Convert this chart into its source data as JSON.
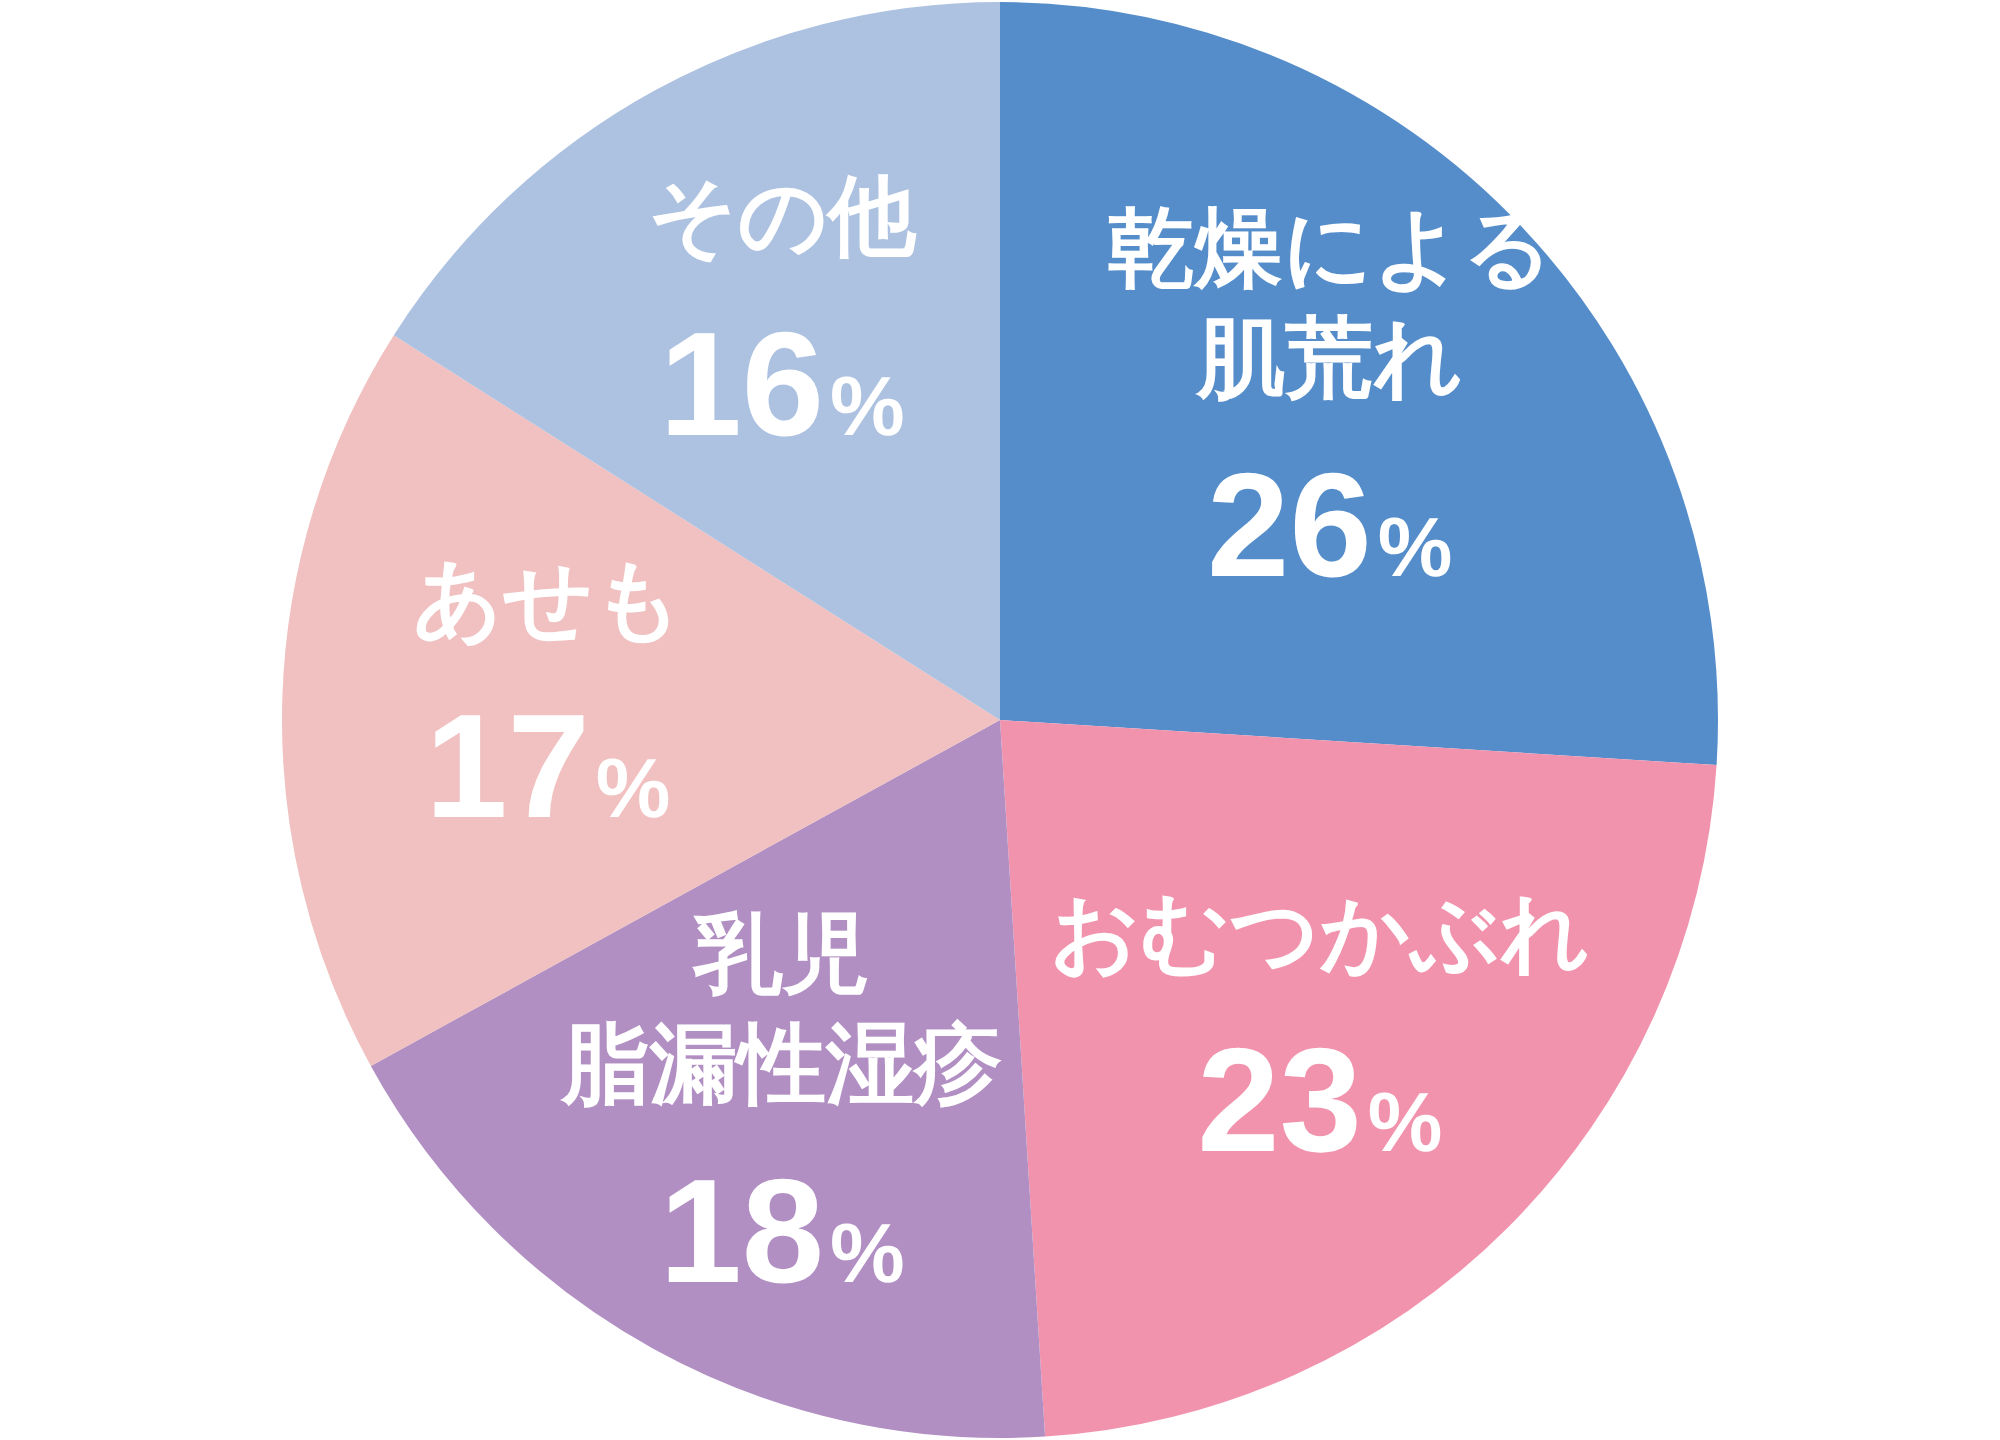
{
  "chart_data": {
    "type": "pie",
    "categories": [
      "乾燥による肌荒れ",
      "おむつかぶれ",
      "乳児脂漏性湿疹",
      "あせも",
      "その他"
    ],
    "values": [
      26,
      23,
      18,
      17,
      16
    ],
    "colors": [
      "#548dca",
      "#f293ae",
      "#b18fc3",
      "#f0c1c0",
      "#adc2e1"
    ],
    "value_labels": [
      "26%",
      "23%",
      "18%",
      "17%",
      "16%"
    ],
    "legend": false
  }
}
